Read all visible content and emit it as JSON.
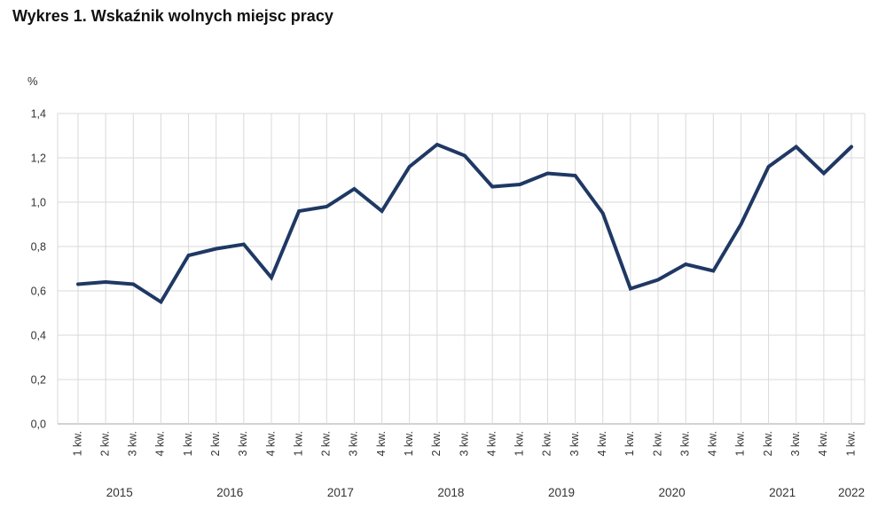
{
  "page": {
    "background": "#ffffff"
  },
  "chart_data": {
    "type": "line",
    "title": "Wykres 1. Wskaźnik wolnych miejsc pracy",
    "unit_label": "%",
    "categories": [
      "1 kw.",
      "2 kw.",
      "3 kw.",
      "4 kw.",
      "1 kw.",
      "2 kw.",
      "3 kw.",
      "4 kw.",
      "1 kw.",
      "2 kw.",
      "3 kw.",
      "4 kw.",
      "1 kw.",
      "2 kw.",
      "3 kw.",
      "4 kw.",
      "1 kw.",
      "2 kw.",
      "3 kw.",
      "4 kw.",
      "1 kw.",
      "2 kw.",
      "3 kw.",
      "4 kw.",
      "1 kw.",
      "2 kw.",
      "3 kw.",
      "4 kw.",
      "1 kw."
    ],
    "years": [
      "2015",
      "2016",
      "2017",
      "2018",
      "2019",
      "2020",
      "2021",
      "2022"
    ],
    "points_per_year": [
      4,
      4,
      4,
      4,
      4,
      4,
      4,
      1
    ],
    "values": [
      0.63,
      0.64,
      0.63,
      0.55,
      0.76,
      0.79,
      0.81,
      0.66,
      0.96,
      0.98,
      1.06,
      0.96,
      1.16,
      1.26,
      1.21,
      1.07,
      1.08,
      1.13,
      1.12,
      0.95,
      0.61,
      0.65,
      0.72,
      0.69,
      0.9,
      1.16,
      1.25,
      1.13,
      1.25
    ],
    "y_ticks": [
      "0,0",
      "0,2",
      "0,4",
      "0,6",
      "0,8",
      "1,0",
      "1,2",
      "1,4"
    ],
    "ylim": [
      0,
      1.4
    ],
    "grid": true,
    "legend": "none",
    "line_color": "#1f3864",
    "grid_color": "#d9d9d9",
    "axis_color": "#a6a6a6",
    "text_color": "#333333"
  }
}
